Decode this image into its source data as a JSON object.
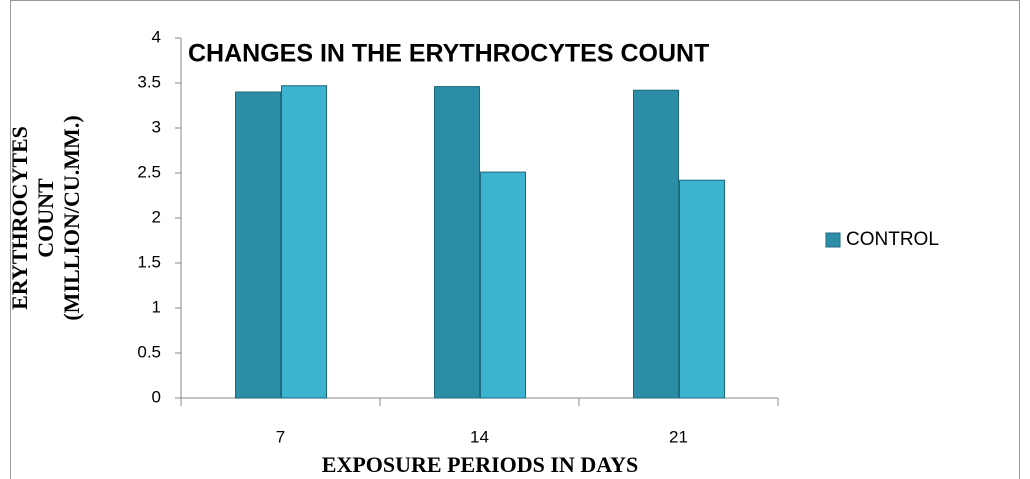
{
  "chart_data": {
    "type": "bar",
    "title": "CHANGES IN THE ERYTHROCYTES COUNT",
    "ylabel": [
      "ERYTHROCYTES",
      "COUNT",
      "(MILLION/CU.MM.)"
    ],
    "xlabel": "EXPOSURE PERIODS IN DAYS",
    "categories": [
      "7",
      "14",
      "21"
    ],
    "series": [
      {
        "name": "CONTROL",
        "color": "#2b8ea6",
        "values": [
          3.4,
          3.46,
          3.42
        ]
      },
      {
        "color": "#3cb3cf",
        "values": [
          3.47,
          2.51,
          2.42
        ]
      }
    ],
    "ylim": [
      0,
      4
    ],
    "yticks": [
      0,
      0.5,
      1,
      1.5,
      2,
      2.5,
      3,
      3.5,
      4
    ],
    "legend": "right"
  }
}
